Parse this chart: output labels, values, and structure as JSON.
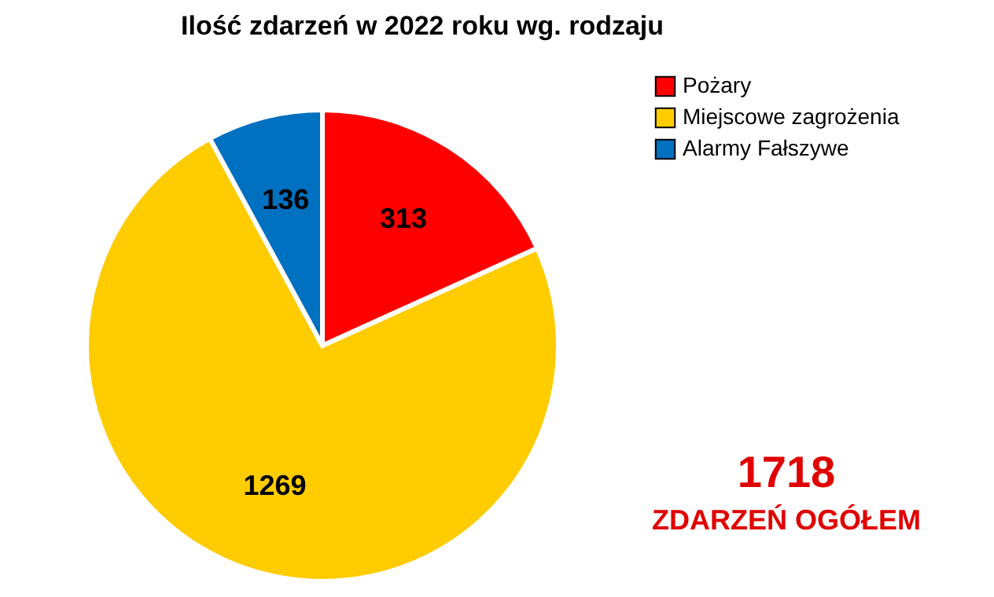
{
  "chart_data": {
    "type": "pie",
    "title": "Ilość zdarzeń w 2022 roku wg. rodzaju",
    "categories": [
      "Pożary",
      "Miejscowe zagrożenia",
      "Alarmy Fałszywe"
    ],
    "values": [
      313,
      1269,
      136
    ],
    "colors": [
      "#ff0000",
      "#ffcc00",
      "#0070c0"
    ],
    "data_labels": true,
    "legend": "top right",
    "annotations": [
      "1718",
      "ZDARZEŃ OGÓŁEM"
    ]
  }
}
